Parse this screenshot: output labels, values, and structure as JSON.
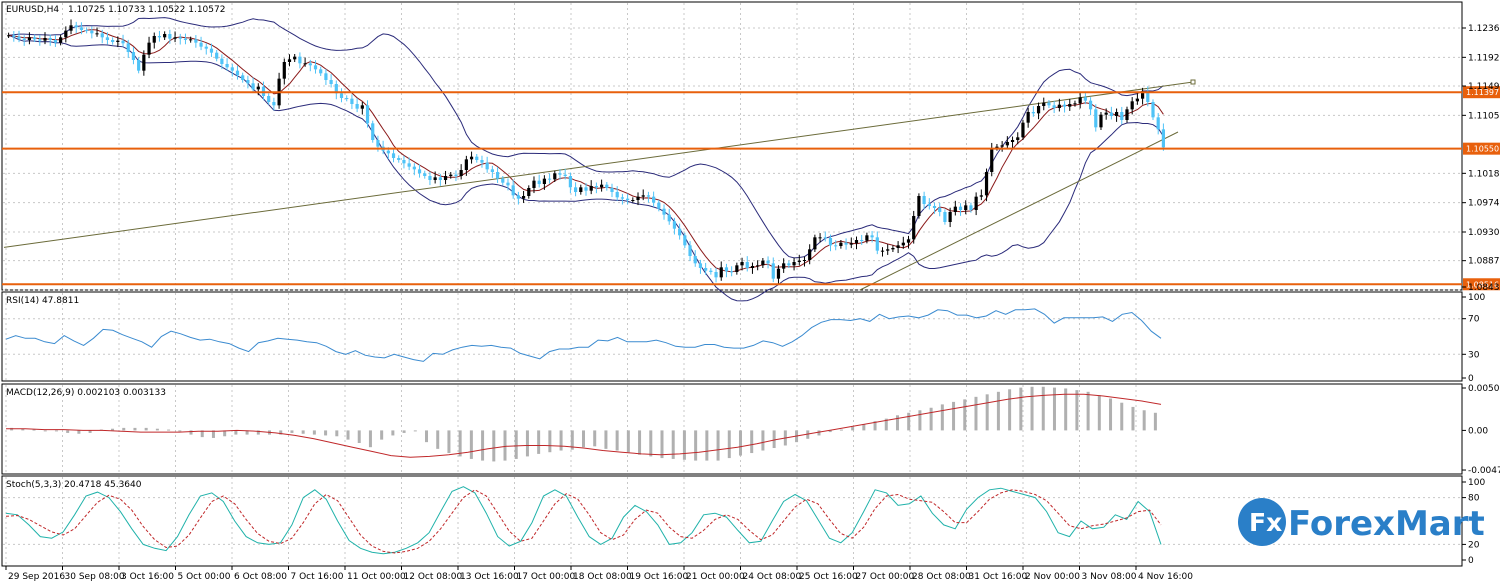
{
  "header": {
    "symbol_title": "EURUSD,H4",
    "ohlc": "1.10725 1.10733 1.10522 1.10572"
  },
  "colors": {
    "bull": "#000000",
    "bear": "#4fc3f7",
    "level": "#e8600c",
    "bollinger": "#2b2b7a",
    "ma": "#8b1a1a",
    "trend": "#6b6b3a",
    "rsi": "#3b8bd0",
    "macd_hist": "#b0b0b0",
    "macd_signal": "#c0282a",
    "stoch_main": "#20b2aa",
    "stoch_signal": "#c0282a",
    "logo": "#2a7fc8"
  },
  "logo": {
    "fx": "Fx",
    "text": "ForexMart",
    "icon": "forexmart-logo-icon"
  },
  "chart_data": [
    {
      "type": "candlestick",
      "title": "EURUSD,H4",
      "ylim": [
        1.0843,
        1.1275
      ],
      "y_ticks": [
        "1.12360",
        "1.11920",
        "1.11490",
        "1.11050",
        "1.10180",
        "1.09740",
        "1.09300",
        "1.08870",
        "1.08430"
      ],
      "y_tick_values": [
        1.1236,
        1.1192,
        1.1149,
        1.1105,
        1.1018,
        1.0974,
        1.093,
        1.0887,
        1.0843
      ],
      "levels": [
        {
          "value": 1.11397,
          "label": "1.11397"
        },
        {
          "value": 1.1055,
          "label": "1.10550"
        },
        {
          "value": 1.08516,
          "label": "1.08516"
        }
      ],
      "x_labels": [
        "29 Sep 2016",
        "30 Sep 08:00",
        "3 Oct 16:00",
        "5 Oct 00:00",
        "6 Oct 08:00",
        "7 Oct 16:00",
        "11 Oct 00:00",
        "12 Oct 08:00",
        "13 Oct 16:00",
        "17 Oct 00:00",
        "18 Oct 08:00",
        "19 Oct 16:00",
        "21 Oct 00:00",
        "24 Oct 08:00",
        "25 Oct 16:00",
        "27 Oct 00:00",
        "28 Oct 08:00",
        "31 Oct 16:00",
        "2 Nov 00:00",
        "3 Nov 08:00",
        "4 Nov 16:00"
      ],
      "close_path": [
        1.1225,
        1.1223,
        1.122,
        1.1218,
        1.1222,
        1.1219,
        1.1217,
        1.1221,
        1.1218,
        1.1214,
        1.1222,
        1.1232,
        1.124,
        1.1237,
        1.1233,
        1.1232,
        1.1228,
        1.1228,
        1.1222,
        1.1218,
        1.1215,
        1.1217,
        1.1213,
        1.12,
        1.1188,
        1.1172,
        1.1196,
        1.1214,
        1.1224,
        1.1222,
        1.1227,
        1.122,
        1.1222,
        1.122,
        1.1218,
        1.1219,
        1.1214,
        1.1208,
        1.1205,
        1.1199,
        1.119,
        1.1182,
        1.1177,
        1.1172,
        1.1165,
        1.1158,
        1.1153,
        1.1144,
        1.1148,
        1.1134,
        1.1125,
        1.112,
        1.116,
        1.1185,
        1.1189,
        1.1193,
        1.1183,
        1.1183,
        1.118,
        1.1174,
        1.1168,
        1.1158,
        1.1152,
        1.1138,
        1.1131,
        1.113,
        1.1122,
        1.1115,
        1.112,
        1.1093,
        1.1068,
        1.1058,
        1.1052,
        1.1048,
        1.1041,
        1.1038,
        1.1033,
        1.1028,
        1.1024,
        1.1018,
        1.1014,
        1.1008,
        1.1012,
        1.1008,
        1.1014,
        1.1016,
        1.1014,
        1.1023,
        1.1039,
        1.1043,
        1.1038,
        1.1034,
        1.1024,
        1.102,
        1.101,
        1.1004,
        1.1,
        1.0985,
        1.098,
        1.0984,
        1.0996,
        1.1007,
        1.1002,
        1.101,
        1.1009,
        1.1018,
        1.1016,
        1.1014,
        1.0997,
        1.099,
        1.0997,
        1.0992,
        1.0999,
        1.0997,
        1.1001,
        1.0996,
        1.099,
        1.0982,
        1.098,
        1.0978,
        1.0978,
        1.0983,
        1.0985,
        1.0983,
        1.0974,
        1.0965,
        1.0956,
        1.0946,
        1.0935,
        1.0925,
        1.091,
        1.0894,
        1.0883,
        1.0876,
        1.0872,
        1.087,
        1.0862,
        1.0877,
        1.0871,
        1.087,
        1.088,
        1.0885,
        1.0876,
        1.0879,
        1.088,
        1.0887,
        1.0883,
        1.086,
        1.0875,
        1.0883,
        1.088,
        1.0885,
        1.0887,
        1.0888,
        1.0904,
        1.0922,
        1.0922,
        1.0921,
        1.091,
        1.0909,
        1.0914,
        1.0911,
        1.0913,
        1.0918,
        1.0917,
        1.0925,
        1.0922,
        1.0902,
        1.0902,
        1.0904,
        1.0906,
        1.091,
        1.0914,
        1.0919,
        1.0954,
        1.0984,
        1.0972,
        1.0969,
        1.0966,
        1.096,
        1.0945,
        1.096,
        1.0968,
        1.0963,
        1.097,
        1.0963,
        1.0983,
        1.0985,
        1.102,
        1.1056,
        1.1058,
        1.106,
        1.1065,
        1.1068,
        1.1072,
        1.1094,
        1.111,
        1.1108,
        1.1119,
        1.1124,
        1.112,
        1.1116,
        1.1121,
        1.1118,
        1.1122,
        1.1123,
        1.1132,
        1.1127,
        1.1114,
        1.1087,
        1.1106,
        1.1109,
        1.1104,
        1.111,
        1.1098,
        1.1114,
        1.1126,
        1.113,
        1.1141,
        1.1125,
        1.1102,
        1.1084,
        1.1057
      ]
    },
    {
      "type": "line",
      "title": "RSI(14) 47.8811",
      "ylim": [
        0,
        100
      ],
      "y_ticks": [
        "100",
        "70",
        "30",
        "0"
      ],
      "y_tick_values": [
        100,
        70,
        30,
        0
      ],
      "series": [
        {
          "name": "RSI(14)",
          "values": [
            47,
            51,
            48,
            48,
            44,
            42,
            51,
            45,
            40,
            48,
            58,
            57,
            52,
            48,
            44,
            38,
            50,
            56,
            53,
            49,
            46,
            47,
            44,
            42,
            37,
            33,
            43,
            45,
            48,
            47,
            46,
            44,
            43,
            39,
            33,
            30,
            34,
            29,
            27,
            26,
            30,
            27,
            24,
            22,
            31,
            30,
            35,
            38,
            40,
            39,
            40,
            38,
            37,
            31,
            28,
            25,
            33,
            36,
            36,
            38,
            38,
            46,
            45,
            49,
            44,
            44,
            44,
            46,
            43,
            39,
            38,
            38,
            41,
            41,
            38,
            37,
            37,
            40,
            45,
            43,
            39,
            44,
            51,
            60,
            66,
            69,
            69,
            68,
            70,
            67,
            75,
            70,
            72,
            73,
            71,
            74,
            80,
            79,
            74,
            74,
            71,
            73,
            79,
            75,
            80,
            80,
            81,
            75,
            65,
            71,
            71,
            71,
            71,
            72,
            67,
            75,
            77,
            68,
            56,
            48
          ]
        }
      ]
    },
    {
      "type": "bar",
      "title": "MACD(12,26,9) 0.002103 0.003133",
      "ylim": [
        -0.00472,
        0.005054
      ],
      "y_ticks": [
        "0.005054",
        "0.00",
        "-0.004724"
      ],
      "y_tick_values": [
        0.005054,
        0.0,
        -0.004724
      ],
      "series": [
        {
          "name": "MACD",
          "values": [
            0.0003,
            0.0002,
            0.0001,
            0.0,
            0.0,
            -0.0003,
            -0.0004,
            -0.0003,
            0.0001,
            0.0002,
            0.0003,
            0.0003,
            0.0003,
            0.0002,
            0.0001,
            0.0,
            -0.0005,
            -0.0008,
            -0.0009,
            -0.0007,
            -0.0005,
            -0.0005,
            -0.0005,
            -0.0005,
            -0.0005,
            -0.0003,
            -0.0004,
            -0.0005,
            -0.0006,
            -0.0007,
            -0.0011,
            -0.0015,
            -0.002,
            -0.0011,
            -0.0006,
            -0.0003,
            -0.0001,
            -0.0014,
            -0.0022,
            -0.0027,
            -0.0031,
            -0.0034,
            -0.0036,
            -0.0037,
            -0.0036,
            -0.0034,
            -0.0031,
            -0.0028,
            -0.0026,
            -0.0024,
            -0.0023,
            -0.002,
            -0.0019,
            -0.0022,
            -0.0024,
            -0.0026,
            -0.0029,
            -0.0031,
            -0.0033,
            -0.0034,
            -0.0035,
            -0.0036,
            -0.0036,
            -0.0036,
            -0.0033,
            -0.003,
            -0.0027,
            -0.0024,
            -0.0021,
            -0.0018,
            -0.0014,
            -0.001,
            -0.0006,
            -0.0002,
            0.0001,
            0.0004,
            0.0007,
            0.0011,
            0.0014,
            0.0018,
            0.0021,
            0.0024,
            0.0027,
            0.0031,
            0.0034,
            0.0037,
            0.004,
            0.0043,
            0.0046,
            0.0049,
            0.0051,
            0.0052,
            0.0052,
            0.0051,
            0.005,
            0.0048,
            0.0046,
            0.0042,
            0.0038,
            0.0033,
            0.0028,
            0.0024,
            0.0021
          ]
        },
        {
          "name": "Signal",
          "values": [
            0.0002,
            0.0002,
            0.0001,
            0.0001,
            0.0,
            0.0,
            -0.0001,
            -0.0002,
            -0.0002,
            -0.0002,
            -0.0001,
            -0.0001,
            0.0,
            -0.0001,
            -0.0003,
            -0.0006,
            -0.001,
            -0.0015,
            -0.002,
            -0.0025,
            -0.003,
            -0.0032,
            -0.0031,
            -0.0029,
            -0.0026,
            -0.0022,
            -0.0019,
            -0.0018,
            -0.0018,
            -0.0019,
            -0.0021,
            -0.0024,
            -0.0026,
            -0.0028,
            -0.0029,
            -0.0028,
            -0.0026,
            -0.0023,
            -0.002,
            -0.0016,
            -0.0011,
            -0.0007,
            -0.0003,
            0.0001,
            0.0005,
            0.0009,
            0.0013,
            0.0017,
            0.0021,
            0.0025,
            0.0029,
            0.0033,
            0.0037,
            0.004,
            0.0042,
            0.0043,
            0.0043,
            0.0041,
            0.0038,
            0.0035,
            0.0031
          ]
        }
      ]
    },
    {
      "type": "line",
      "title": "Stoch(5,3,3) 20.4718 45.3640",
      "ylim": [
        0,
        100
      ],
      "y_ticks": [
        "100",
        "80",
        "20",
        "0"
      ],
      "y_tick_values": [
        100,
        80,
        20,
        0
      ],
      "series": [
        {
          "name": "%K",
          "values": [
            60,
            58,
            45,
            30,
            28,
            36,
            58,
            82,
            87,
            80,
            62,
            40,
            20,
            15,
            12,
            30,
            58,
            82,
            86,
            75,
            50,
            30,
            22,
            20,
            22,
            45,
            80,
            90,
            78,
            50,
            25,
            15,
            10,
            8,
            10,
            15,
            22,
            35,
            62,
            88,
            94,
            86,
            60,
            30,
            18,
            24,
            48,
            82,
            90,
            82,
            55,
            30,
            20,
            28,
            55,
            70,
            62,
            45,
            20,
            22,
            35,
            58,
            60,
            55,
            38,
            22,
            24,
            50,
            75,
            84,
            76,
            52,
            28,
            22,
            35,
            62,
            90,
            86,
            70,
            72,
            82,
            60,
            45,
            40,
            65,
            80,
            90,
            92,
            88,
            84,
            80,
            62,
            35,
            30,
            50,
            40,
            42,
            58,
            52,
            75,
            62,
            20
          ]
        },
        {
          "name": "%D",
          "values": [
            56,
            57,
            52,
            44,
            36,
            32,
            40,
            57,
            74,
            83,
            78,
            64,
            43,
            26,
            16,
            18,
            32,
            54,
            75,
            82,
            72,
            52,
            34,
            24,
            21,
            28,
            48,
            72,
            84,
            76,
            54,
            32,
            18,
            11,
            9,
            11,
            15,
            24,
            40,
            60,
            80,
            90,
            82,
            60,
            37,
            24,
            28,
            50,
            72,
            85,
            78,
            58,
            35,
            26,
            32,
            52,
            64,
            60,
            42,
            30,
            28,
            38,
            52,
            58,
            52,
            38,
            26,
            32,
            50,
            68,
            78,
            72,
            52,
            34,
            28,
            42,
            66,
            82,
            84,
            78,
            76,
            74,
            62,
            48,
            48,
            62,
            78,
            86,
            90,
            88,
            84,
            76,
            60,
            44,
            40,
            44,
            46,
            50,
            54,
            62,
            64,
            45
          ]
        }
      ]
    }
  ]
}
